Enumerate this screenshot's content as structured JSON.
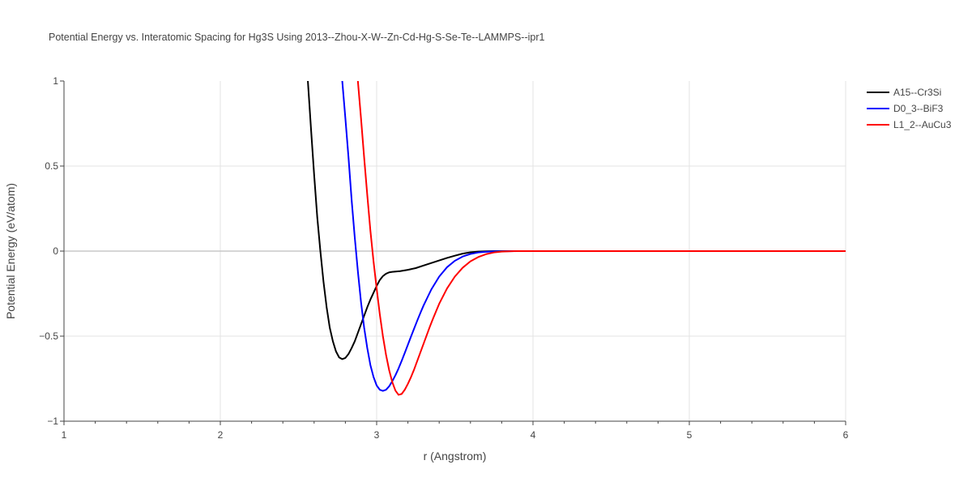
{
  "chart_data": {
    "type": "line",
    "title": "Potential Energy vs. Interatomic Spacing for Hg3S Using 2013--Zhou-X-W--Zn-Cd-Hg-S-Se-Te--LAMMPS--ipr1",
    "xlabel": "r (Angstrom)",
    "ylabel": "Potential Energy (eV/atom)",
    "xlim": [
      1,
      6
    ],
    "ylim": [
      -1,
      1
    ],
    "xticks": [
      1,
      2,
      3,
      4,
      5,
      6
    ],
    "xtick_labels": [
      "1",
      "2",
      "3",
      "4",
      "5",
      "6"
    ],
    "yticks": [
      -1,
      -0.5,
      0,
      0.5,
      1
    ],
    "ytick_labels": [
      "−1",
      "−0.5",
      "0",
      "0.5",
      "1"
    ],
    "grid": true,
    "legend_position": "top-right",
    "series": [
      {
        "name": "A15--Cr3Si",
        "color": "#000000",
        "x": [
          2.56,
          2.58,
          2.6,
          2.62,
          2.64,
          2.66,
          2.68,
          2.7,
          2.72,
          2.74,
          2.76,
          2.78,
          2.8,
          2.82,
          2.84,
          2.86,
          2.88,
          2.9,
          2.92,
          2.94,
          2.96,
          2.98,
          3.0,
          3.02,
          3.04,
          3.06,
          3.08,
          3.1,
          3.15,
          3.2,
          3.25,
          3.3,
          3.35,
          3.4,
          3.45,
          3.5,
          3.55,
          3.6,
          3.65,
          3.7,
          3.75,
          3.8,
          4.0,
          5.0,
          6.0
        ],
        "y": [
          1.0,
          0.72,
          0.45,
          0.2,
          0.0,
          -0.18,
          -0.33,
          -0.45,
          -0.53,
          -0.59,
          -0.625,
          -0.635,
          -0.628,
          -0.605,
          -0.57,
          -0.53,
          -0.48,
          -0.43,
          -0.38,
          -0.33,
          -0.285,
          -0.245,
          -0.205,
          -0.17,
          -0.147,
          -0.133,
          -0.125,
          -0.122,
          -0.118,
          -0.11,
          -0.1,
          -0.085,
          -0.07,
          -0.055,
          -0.04,
          -0.027,
          -0.015,
          -0.007,
          -0.003,
          -0.001,
          0.0,
          0.0,
          0.0,
          0.0,
          0.0
        ]
      },
      {
        "name": "D0_3--BiF3",
        "color": "#0000ff",
        "x": [
          2.78,
          2.8,
          2.82,
          2.84,
          2.86,
          2.88,
          2.9,
          2.92,
          2.94,
          2.96,
          2.98,
          3.0,
          3.02,
          3.04,
          3.06,
          3.08,
          3.1,
          3.12,
          3.14,
          3.16,
          3.18,
          3.2,
          3.22,
          3.24,
          3.26,
          3.28,
          3.3,
          3.35,
          3.4,
          3.45,
          3.5,
          3.55,
          3.6,
          3.65,
          3.7,
          3.75,
          3.8,
          3.9,
          4.0,
          5.0,
          6.0
        ],
        "y": [
          1.0,
          0.78,
          0.55,
          0.3,
          0.08,
          -0.12,
          -0.3,
          -0.45,
          -0.57,
          -0.67,
          -0.74,
          -0.79,
          -0.815,
          -0.822,
          -0.815,
          -0.795,
          -0.765,
          -0.73,
          -0.69,
          -0.645,
          -0.598,
          -0.55,
          -0.502,
          -0.455,
          -0.408,
          -0.363,
          -0.32,
          -0.225,
          -0.15,
          -0.095,
          -0.057,
          -0.032,
          -0.017,
          -0.008,
          -0.004,
          -0.002,
          -0.001,
          0.0,
          0.0,
          0.0,
          0.0
        ]
      },
      {
        "name": "L1_2--AuCu3",
        "color": "#ff0000",
        "x": [
          2.88,
          2.9,
          2.92,
          2.94,
          2.96,
          2.98,
          3.0,
          3.02,
          3.04,
          3.06,
          3.08,
          3.1,
          3.12,
          3.14,
          3.16,
          3.18,
          3.2,
          3.22,
          3.24,
          3.26,
          3.28,
          3.3,
          3.32,
          3.34,
          3.36,
          3.4,
          3.45,
          3.5,
          3.55,
          3.6,
          3.65,
          3.7,
          3.75,
          3.8,
          3.85,
          3.9,
          4.0,
          5.0,
          6.0
        ],
        "y": [
          1.0,
          0.78,
          0.55,
          0.33,
          0.12,
          -0.06,
          -0.22,
          -0.37,
          -0.5,
          -0.61,
          -0.7,
          -0.77,
          -0.82,
          -0.845,
          -0.84,
          -0.815,
          -0.78,
          -0.74,
          -0.695,
          -0.645,
          -0.595,
          -0.545,
          -0.495,
          -0.445,
          -0.398,
          -0.31,
          -0.22,
          -0.15,
          -0.098,
          -0.06,
          -0.035,
          -0.018,
          -0.008,
          -0.003,
          -0.001,
          0.0,
          0.0,
          0.0,
          0.0
        ]
      }
    ]
  }
}
